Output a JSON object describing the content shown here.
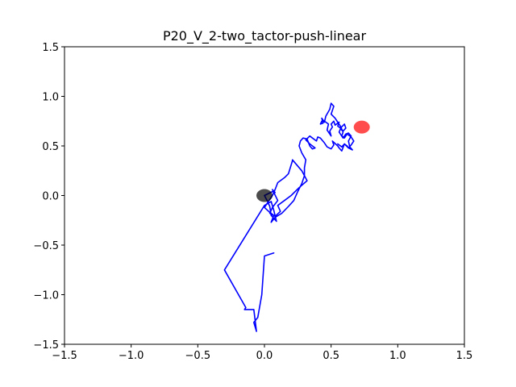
{
  "chart_data": {
    "type": "line",
    "title": "P20_V_2-two_tactor-push-linear",
    "xlabel": "",
    "ylabel": "",
    "xlim": [
      -1.5,
      1.5
    ],
    "ylim": [
      -1.5,
      1.5
    ],
    "x_ticks": [
      -1.5,
      -1.0,
      -0.5,
      0.0,
      0.5,
      1.0,
      1.5
    ],
    "y_ticks": [
      -1.5,
      -1.0,
      -0.5,
      0.0,
      0.5,
      1.0,
      1.5
    ],
    "x_tick_labels": [
      "−1.5",
      "−1.0",
      "−0.5",
      "0.0",
      "0.5",
      "1.0",
      "1.5"
    ],
    "y_tick_labels": [
      "−1.5",
      "−1.0",
      "−0.5",
      "0.0",
      "0.5",
      "1.0",
      "1.5"
    ],
    "grid": false,
    "series": [
      {
        "color": "#0000ff",
        "x": [
          0.07,
          0.0,
          -0.02,
          -0.05,
          -0.08,
          -0.06,
          -0.08,
          -0.15,
          -0.14,
          -0.3,
          0.0,
          0.05,
          0.07,
          0.09,
          0.05,
          0.04,
          0.02,
          0.0,
          0.06,
          0.08,
          0.06,
          0.1,
          0.06,
          0.04,
          0.08,
          0.12,
          0.1,
          0.15,
          0.2,
          0.26,
          0.32,
          0.28,
          0.21,
          0.21,
          0.18,
          0.15,
          0.1,
          0.08,
          0.07,
          0.06,
          0.04,
          0.02,
          0.01,
          0.0,
          0.04,
          0.07,
          0.05,
          0.08,
          0.13,
          0.18,
          0.22,
          0.25,
          0.28,
          0.3,
          0.3,
          0.31,
          0.28,
          0.26,
          0.27,
          0.29,
          0.32,
          0.34,
          0.36,
          0.38,
          0.34,
          0.31,
          0.34,
          0.36,
          0.39,
          0.4,
          0.42,
          0.45,
          0.47,
          0.5,
          0.52,
          0.51,
          0.55,
          0.56,
          0.58,
          0.6,
          0.62,
          0.63,
          0.66,
          0.64,
          0.63,
          0.65,
          0.63,
          0.61,
          0.59,
          0.56,
          0.57,
          0.59,
          0.61,
          0.6,
          0.57,
          0.55,
          0.56,
          0.53,
          0.52,
          0.5,
          0.51,
          0.49,
          0.5,
          0.47,
          0.48,
          0.46,
          0.44,
          0.43,
          0.44,
          0.42,
          0.43,
          0.45,
          0.46,
          0.49,
          0.5,
          0.52,
          0.5,
          0.53,
          0.55,
          0.57,
          0.59,
          0.58,
          0.6,
          0.62,
          0.65,
          0.67,
          0.65,
          0.63,
          0.6,
          0.58,
          0.55
        ],
        "y": [
          -0.58,
          -0.61,
          -1.0,
          -1.23,
          -1.28,
          -1.37,
          -1.15,
          -1.15,
          -1.13,
          -0.75,
          -0.1,
          -0.06,
          -0.15,
          -0.26,
          -0.2,
          -0.11,
          -0.05,
          0.0,
          0.04,
          0.03,
          0.06,
          -0.05,
          -0.12,
          -0.18,
          -0.21,
          -0.16,
          -0.1,
          -0.05,
          0.0,
          0.08,
          0.15,
          0.25,
          0.36,
          0.35,
          0.22,
          0.18,
          0.13,
          0.06,
          0.03,
          0.0,
          -0.04,
          -0.08,
          -0.1,
          -0.12,
          -0.17,
          -0.2,
          -0.27,
          -0.22,
          -0.18,
          -0.11,
          -0.05,
          0.04,
          0.12,
          0.2,
          0.28,
          0.36,
          0.43,
          0.5,
          0.55,
          0.58,
          0.57,
          0.5,
          0.47,
          0.48,
          0.52,
          0.56,
          0.6,
          0.58,
          0.55,
          0.59,
          0.58,
          0.53,
          0.49,
          0.47,
          0.51,
          0.55,
          0.5,
          0.48,
          0.45,
          0.52,
          0.5,
          0.48,
          0.46,
          0.49,
          0.55,
          0.6,
          0.63,
          0.62,
          0.58,
          0.64,
          0.67,
          0.65,
          0.68,
          0.72,
          0.68,
          0.7,
          0.74,
          0.71,
          0.75,
          0.72,
          0.69,
          0.65,
          0.6,
          0.66,
          0.72,
          0.74,
          0.76,
          0.78,
          0.73,
          0.72,
          0.75,
          0.74,
          0.8,
          0.87,
          0.93,
          0.9,
          0.82,
          0.78,
          0.74,
          0.7,
          0.64,
          0.6,
          0.58,
          0.62,
          0.59,
          0.55,
          0.51,
          0.48,
          0.52,
          0.49,
          0.52
        ]
      }
    ],
    "markers": [
      {
        "color": "#000000",
        "x": 0.0,
        "y": 0.0
      },
      {
        "color": "#ff0000",
        "x": 0.73,
        "y": 0.69
      }
    ]
  }
}
